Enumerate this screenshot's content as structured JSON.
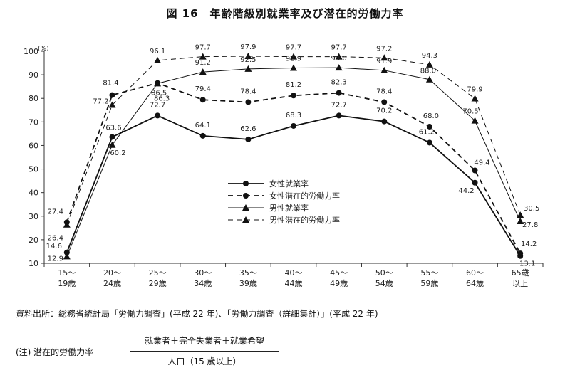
{
  "title": "図 16　年齢階級別就業率及び潜在的労働力率",
  "source": "資料出所：総務省統計局「労働力調査」(平成 22 年)、「労働力調査（詳細集計）」(平成 22 年)",
  "note": {
    "label": "(注) 潜在的労働力率",
    "numerator": "就業者＋完全失業者＋就業希望",
    "denominator": "人口（15 歳以上）"
  },
  "chart_data": {
    "type": "line",
    "ylabel": "",
    "y_unit": "(%)",
    "ylim": [
      10,
      100
    ],
    "yticks": [
      "10",
      "20",
      "30",
      "40",
      "50",
      "60",
      "70",
      "80",
      "90",
      "100"
    ],
    "categories": [
      [
        "15～",
        "19歳"
      ],
      [
        "20～",
        "24歳"
      ],
      [
        "25～",
        "29歳"
      ],
      [
        "30～",
        "34歳"
      ],
      [
        "35～",
        "39歳"
      ],
      [
        "40～",
        "44歳"
      ],
      [
        "45～",
        "49歳"
      ],
      [
        "50～",
        "54歳"
      ],
      [
        "55～",
        "59歳"
      ],
      [
        "60～",
        "64歳"
      ],
      [
        "65歳",
        "以上"
      ]
    ],
    "series": [
      {
        "name": "女性就業率",
        "marker": "circle",
        "dash": "solid",
        "width": 1.8,
        "values": [
          14.6,
          63.6,
          72.7,
          64.1,
          62.6,
          68.3,
          72.7,
          70.2,
          61.2,
          44.2,
          13.1
        ],
        "labels": [
          "14.6",
          "63.6",
          "72.7",
          "64.1",
          "62.6",
          "68.3",
          "72.7",
          "70.2",
          "61.2",
          "44.2",
          "13.1"
        ]
      },
      {
        "name": "女性潜在的労働力率",
        "marker": "circle",
        "dash": "dashed",
        "width": 1.8,
        "values": [
          27.4,
          81.4,
          86.5,
          79.4,
          78.4,
          81.2,
          82.3,
          78.4,
          68.0,
          49.4,
          14.2
        ],
        "labels": [
          "27.4",
          "81.4",
          "86.5",
          "79.4",
          "78.4",
          "81.2",
          "82.3",
          "78.4",
          "68.0",
          "49.4",
          "14.2"
        ]
      },
      {
        "name": "男性就業率",
        "marker": "triangle",
        "dash": "solid",
        "width": 1.0,
        "values": [
          12.9,
          60.2,
          86.3,
          91.2,
          92.5,
          92.9,
          93.0,
          91.9,
          88.0,
          70.5,
          27.8
        ],
        "labels": [
          "12.9",
          "60.2",
          "86.3",
          "91.2",
          "92.5",
          "92.9",
          "93.0",
          "91.9",
          "88.0",
          "70.5",
          "27.8"
        ]
      },
      {
        "name": "男性潜在的労働力率",
        "marker": "triangle",
        "dash": "dashed",
        "width": 1.0,
        "values": [
          26.4,
          77.2,
          96.1,
          97.7,
          97.9,
          97.7,
          97.7,
          97.2,
          94.3,
          79.9,
          30.5
        ],
        "labels": [
          "26.4",
          "77.2",
          "96.1",
          "97.7",
          "97.9",
          "97.7",
          "97.7",
          "97.2",
          "94.3",
          "79.9",
          "30.5"
        ]
      }
    ],
    "grid": false,
    "legend_position": "center"
  }
}
